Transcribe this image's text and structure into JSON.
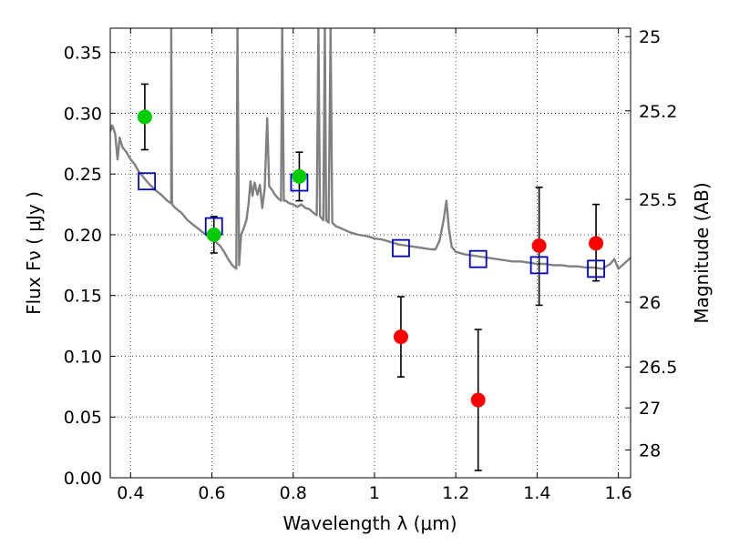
{
  "chart_data": {
    "type": "scatter",
    "title": "",
    "xlabel": "Wavelength  λ (μm)",
    "ylabel": "Flux  Fν  ( μJy )",
    "y2label": "Magnitude (AB)",
    "xlim": [
      0.35,
      1.63
    ],
    "ylim": [
      0.0,
      0.37
    ],
    "grid": true,
    "x_ticks": [
      {
        "value": 0.4,
        "label": "0.4"
      },
      {
        "value": 0.6,
        "label": "0.6"
      },
      {
        "value": 0.8,
        "label": "0.8"
      },
      {
        "value": 1.0,
        "label": "1"
      },
      {
        "value": 1.2,
        "label": "1.2"
      },
      {
        "value": 1.4,
        "label": "1.4"
      },
      {
        "value": 1.6,
        "label": "1.6"
      }
    ],
    "y_ticks": [
      {
        "value": 0.0,
        "label": "0.00"
      },
      {
        "value": 0.05,
        "label": "0.05"
      },
      {
        "value": 0.1,
        "label": "0.10"
      },
      {
        "value": 0.15,
        "label": "0.15"
      },
      {
        "value": 0.2,
        "label": "0.20"
      },
      {
        "value": 0.25,
        "label": "0.25"
      },
      {
        "value": 0.3,
        "label": "0.30"
      },
      {
        "value": 0.35,
        "label": "0.35"
      }
    ],
    "y2_ticks": [
      {
        "label": "25",
        "flux": 0.3631
      },
      {
        "label": "25.2",
        "flux": 0.302
      },
      {
        "label": "25.5",
        "flux": 0.2291
      },
      {
        "label": "26",
        "flux": 0.1445
      },
      {
        "label": "26.5",
        "flux": 0.0912
      },
      {
        "label": "27",
        "flux": 0.0575
      },
      {
        "label": "28",
        "flux": 0.0229
      }
    ],
    "series": [
      {
        "kind": "line",
        "color": "#808080",
        "points": [
          [
            0.35,
            0.285
          ],
          [
            0.355,
            0.29
          ],
          [
            0.362,
            0.283
          ],
          [
            0.368,
            0.262
          ],
          [
            0.373,
            0.28
          ],
          [
            0.38,
            0.272
          ],
          [
            0.39,
            0.268
          ],
          [
            0.4,
            0.262
          ],
          [
            0.41,
            0.258
          ],
          [
            0.42,
            0.252
          ],
          [
            0.43,
            0.248
          ],
          [
            0.445,
            0.242
          ],
          [
            0.46,
            0.237
          ],
          [
            0.475,
            0.233
          ],
          [
            0.49,
            0.228
          ],
          [
            0.5,
            0.226
          ],
          [
            0.5,
            0.37
          ],
          [
            0.502,
            0.225
          ],
          [
            0.51,
            0.222
          ],
          [
            0.525,
            0.218
          ],
          [
            0.54,
            0.212
          ],
          [
            0.555,
            0.208
          ],
          [
            0.57,
            0.204
          ],
          [
            0.585,
            0.2
          ],
          [
            0.6,
            0.196
          ],
          [
            0.61,
            0.194
          ],
          [
            0.62,
            0.191
          ],
          [
            0.63,
            0.186
          ],
          [
            0.64,
            0.18
          ],
          [
            0.65,
            0.175
          ],
          [
            0.66,
            0.172
          ],
          [
            0.663,
            0.37
          ],
          [
            0.667,
            0.175
          ],
          [
            0.672,
            0.2
          ],
          [
            0.678,
            0.205
          ],
          [
            0.685,
            0.212
          ],
          [
            0.69,
            0.225
          ],
          [
            0.695,
            0.244
          ],
          [
            0.7,
            0.232
          ],
          [
            0.705,
            0.243
          ],
          [
            0.712,
            0.233
          ],
          [
            0.718,
            0.241
          ],
          [
            0.724,
            0.222
          ],
          [
            0.73,
            0.238
          ],
          [
            0.736,
            0.296
          ],
          [
            0.741,
            0.24
          ],
          [
            0.748,
            0.237
          ],
          [
            0.755,
            0.233
          ],
          [
            0.763,
            0.23
          ],
          [
            0.77,
            0.228
          ],
          [
            0.773,
            0.37
          ],
          [
            0.777,
            0.228
          ],
          [
            0.782,
            0.228
          ],
          [
            0.79,
            0.226
          ],
          [
            0.8,
            0.225
          ],
          [
            0.81,
            0.223
          ],
          [
            0.82,
            0.225
          ],
          [
            0.83,
            0.222
          ],
          [
            0.84,
            0.221
          ],
          [
            0.85,
            0.218
          ],
          [
            0.858,
            0.216
          ],
          [
            0.862,
            0.37
          ],
          [
            0.866,
            0.215
          ],
          [
            0.874,
            0.212
          ],
          [
            0.878,
            0.37
          ],
          [
            0.881,
            0.212
          ],
          [
            0.887,
            0.21
          ],
          [
            0.892,
            0.37
          ],
          [
            0.896,
            0.21
          ],
          [
            0.905,
            0.207
          ],
          [
            0.92,
            0.205
          ],
          [
            0.94,
            0.202
          ],
          [
            0.96,
            0.2
          ],
          [
            0.98,
            0.199
          ],
          [
            1.0,
            0.197
          ],
          [
            1.02,
            0.196
          ],
          [
            1.04,
            0.194
          ],
          [
            1.06,
            0.192
          ],
          [
            1.08,
            0.191
          ],
          [
            1.1,
            0.19
          ],
          [
            1.12,
            0.189
          ],
          [
            1.14,
            0.188
          ],
          [
            1.15,
            0.188
          ],
          [
            1.16,
            0.195
          ],
          [
            1.17,
            0.212
          ],
          [
            1.177,
            0.228
          ],
          [
            1.183,
            0.205
          ],
          [
            1.19,
            0.19
          ],
          [
            1.2,
            0.186
          ],
          [
            1.22,
            0.184
          ],
          [
            1.24,
            0.183
          ],
          [
            1.26,
            0.182
          ],
          [
            1.28,
            0.181
          ],
          [
            1.3,
            0.18
          ],
          [
            1.32,
            0.179
          ],
          [
            1.34,
            0.178
          ],
          [
            1.36,
            0.178
          ],
          [
            1.38,
            0.177
          ],
          [
            1.4,
            0.176
          ],
          [
            1.42,
            0.176
          ],
          [
            1.44,
            0.175
          ],
          [
            1.46,
            0.175
          ],
          [
            1.48,
            0.174
          ],
          [
            1.5,
            0.174
          ],
          [
            1.52,
            0.173
          ],
          [
            1.54,
            0.173
          ],
          [
            1.56,
            0.172
          ],
          [
            1.58,
            0.176
          ],
          [
            1.59,
            0.18
          ],
          [
            1.6,
            0.172
          ],
          [
            1.61,
            0.175
          ],
          [
            1.63,
            0.181
          ]
        ]
      },
      {
        "kind": "markers",
        "marker": "open-square",
        "color": "#0000cc",
        "x": [
          0.44,
          0.605,
          0.815,
          1.065,
          1.255,
          1.405,
          1.545
        ],
        "y": [
          0.244,
          0.207,
          0.243,
          0.189,
          0.18,
          0.175,
          0.172
        ]
      },
      {
        "kind": "points",
        "marker": "filled-circle",
        "color": "#00cc00",
        "x": [
          0.435,
          0.605,
          0.815
        ],
        "y": [
          0.297,
          0.2,
          0.248
        ],
        "err_low": [
          0.27,
          0.185,
          0.228
        ],
        "err_high": [
          0.324,
          0.215,
          0.268
        ]
      },
      {
        "kind": "points",
        "marker": "filled-circle",
        "color": "#ff0000",
        "x": [
          1.065,
          1.255,
          1.405,
          1.545
        ],
        "y": [
          0.116,
          0.064,
          0.191,
          0.193
        ],
        "err_low": [
          0.083,
          0.006,
          0.142,
          0.162
        ],
        "err_high": [
          0.149,
          0.122,
          0.239,
          0.225
        ]
      }
    ]
  }
}
